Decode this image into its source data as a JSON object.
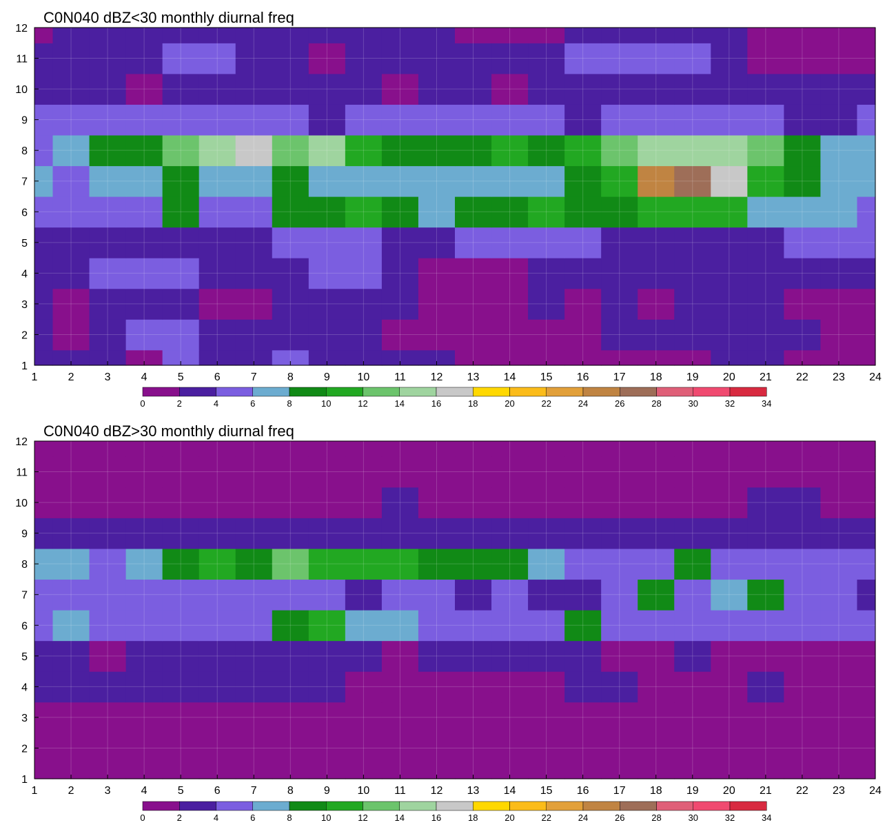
{
  "chart_data": [
    {
      "type": "heatmap",
      "title": "C0N040 dBZ<30 monthly diurnal freq",
      "xlabel": "",
      "ylabel": "",
      "x_ticks": [
        "1",
        "2",
        "3",
        "4",
        "5",
        "6",
        "7",
        "8",
        "9",
        "10",
        "11",
        "12",
        "13",
        "14",
        "15",
        "16",
        "17",
        "18",
        "19",
        "20",
        "21",
        "22",
        "23",
        "24"
      ],
      "y_ticks": [
        "1",
        "2",
        "3",
        "4",
        "5",
        "6",
        "7",
        "8",
        "9",
        "10",
        "11",
        "12"
      ],
      "xlim": [
        1,
        24
      ],
      "ylim": [
        1,
        12
      ],
      "grid": true,
      "legend": "bottom",
      "z": [
        [
          3,
          3,
          3,
          1,
          5,
          3,
          3,
          5,
          3,
          3,
          3,
          3,
          1,
          1,
          1,
          1,
          1,
          1,
          1,
          3,
          3,
          1,
          1,
          1
        ],
        [
          3,
          1,
          3,
          5,
          5,
          3,
          3,
          3,
          3,
          3,
          1,
          1,
          1,
          1,
          1,
          1,
          3,
          3,
          3,
          3,
          3,
          3,
          1,
          1
        ],
        [
          3,
          1,
          3,
          3,
          3,
          1,
          1,
          3,
          3,
          3,
          3,
          1,
          1,
          1,
          3,
          1,
          3,
          1,
          3,
          3,
          3,
          1,
          1,
          1
        ],
        [
          3,
          3,
          5,
          5,
          5,
          3,
          3,
          3,
          5,
          5,
          3,
          1,
          1,
          1,
          3,
          3,
          3,
          3,
          3,
          3,
          3,
          3,
          3,
          3
        ],
        [
          3,
          3,
          3,
          3,
          3,
          3,
          3,
          5,
          5,
          5,
          3,
          3,
          5,
          5,
          5,
          5,
          3,
          3,
          3,
          3,
          3,
          5,
          5,
          5
        ],
        [
          5,
          5,
          5,
          5,
          9,
          5,
          5,
          9,
          9,
          11,
          9,
          7,
          9,
          9,
          11,
          9,
          9,
          11,
          11,
          11,
          7,
          7,
          7,
          5
        ],
        [
          7,
          5,
          7,
          7,
          9,
          7,
          7,
          9,
          7,
          7,
          7,
          7,
          7,
          7,
          7,
          9,
          11,
          25,
          27,
          17,
          11,
          9,
          7,
          7
        ],
        [
          5,
          7,
          9,
          9,
          13,
          15,
          17,
          13,
          15,
          11,
          9,
          9,
          9,
          11,
          9,
          11,
          13,
          15,
          15,
          15,
          13,
          9,
          7,
          7
        ],
        [
          5,
          5,
          5,
          5,
          5,
          5,
          5,
          5,
          3,
          5,
          5,
          5,
          5,
          5,
          5,
          3,
          5,
          5,
          5,
          5,
          5,
          3,
          3,
          5
        ],
        [
          3,
          3,
          3,
          1,
          3,
          3,
          3,
          3,
          3,
          3,
          1,
          3,
          3,
          1,
          3,
          3,
          3,
          3,
          3,
          3,
          3,
          3,
          3,
          3
        ],
        [
          3,
          3,
          3,
          3,
          5,
          5,
          3,
          3,
          1,
          3,
          3,
          3,
          3,
          3,
          3,
          5,
          5,
          5,
          5,
          3,
          1,
          1,
          1,
          1
        ],
        [
          1,
          3,
          3,
          3,
          3,
          3,
          3,
          3,
          3,
          3,
          3,
          3,
          1,
          1,
          1,
          3,
          3,
          3,
          3,
          3,
          1,
          1,
          1,
          1
        ]
      ]
    },
    {
      "type": "heatmap",
      "title": "C0N040 dBZ>30 monthly diurnal freq",
      "xlabel": "",
      "ylabel": "",
      "x_ticks": [
        "1",
        "2",
        "3",
        "4",
        "5",
        "6",
        "7",
        "8",
        "9",
        "10",
        "11",
        "12",
        "13",
        "14",
        "15",
        "16",
        "17",
        "18",
        "19",
        "20",
        "21",
        "22",
        "23",
        "24"
      ],
      "y_ticks": [
        "1",
        "2",
        "3",
        "4",
        "5",
        "6",
        "7",
        "8",
        "9",
        "10",
        "11",
        "12"
      ],
      "xlim": [
        1,
        24
      ],
      "ylim": [
        1,
        12
      ],
      "grid": true,
      "legend": "bottom",
      "z": [
        [
          1,
          1,
          1,
          1,
          1,
          1,
          1,
          1,
          1,
          1,
          1,
          1,
          1,
          1,
          1,
          1,
          1,
          1,
          1,
          1,
          1,
          1,
          1,
          1
        ],
        [
          1,
          1,
          1,
          1,
          1,
          1,
          1,
          1,
          1,
          1,
          1,
          1,
          1,
          1,
          1,
          1,
          1,
          1,
          1,
          1,
          1,
          1,
          1,
          1
        ],
        [
          1,
          1,
          1,
          1,
          1,
          1,
          1,
          1,
          1,
          1,
          1,
          1,
          1,
          1,
          1,
          1,
          1,
          1,
          1,
          1,
          1,
          1,
          1,
          1
        ],
        [
          3,
          3,
          3,
          3,
          3,
          3,
          3,
          3,
          3,
          1,
          1,
          1,
          1,
          1,
          1,
          3,
          3,
          1,
          1,
          1,
          3,
          1,
          1,
          1
        ],
        [
          3,
          3,
          1,
          3,
          3,
          3,
          3,
          3,
          3,
          3,
          1,
          3,
          3,
          3,
          3,
          3,
          1,
          1,
          3,
          1,
          1,
          1,
          1,
          1
        ],
        [
          5,
          7,
          5,
          5,
          5,
          5,
          5,
          9,
          11,
          7,
          7,
          5,
          5,
          5,
          5,
          9,
          5,
          5,
          5,
          5,
          5,
          5,
          5,
          5
        ],
        [
          5,
          5,
          5,
          5,
          5,
          5,
          5,
          5,
          5,
          3,
          5,
          5,
          3,
          5,
          3,
          3,
          5,
          9,
          5,
          7,
          9,
          5,
          5,
          3
        ],
        [
          7,
          7,
          5,
          7,
          9,
          11,
          9,
          13,
          11,
          11,
          11,
          9,
          9,
          9,
          7,
          5,
          5,
          5,
          9,
          5,
          5,
          5,
          5,
          5
        ],
        [
          3,
          3,
          3,
          3,
          3,
          3,
          3,
          3,
          3,
          3,
          3,
          3,
          3,
          3,
          3,
          3,
          3,
          3,
          3,
          3,
          3,
          3,
          3,
          3
        ],
        [
          1,
          1,
          1,
          1,
          1,
          1,
          1,
          1,
          1,
          1,
          3,
          1,
          1,
          1,
          1,
          1,
          1,
          1,
          1,
          1,
          3,
          3,
          1,
          1
        ],
        [
          1,
          1,
          1,
          1,
          1,
          1,
          1,
          1,
          1,
          1,
          1,
          1,
          1,
          1,
          1,
          1,
          1,
          1,
          1,
          1,
          1,
          1,
          1,
          1
        ],
        [
          1,
          1,
          1,
          1,
          1,
          1,
          1,
          1,
          1,
          1,
          1,
          1,
          1,
          1,
          1,
          1,
          1,
          1,
          1,
          1,
          1,
          1,
          1,
          1
        ]
      ]
    }
  ],
  "colorbar": {
    "labels": [
      "0",
      "2",
      "4",
      "6",
      "8",
      "10",
      "12",
      "14",
      "16",
      "18",
      "20",
      "22",
      "24",
      "26",
      "28",
      "30",
      "32",
      "34"
    ],
    "colors": [
      "#88108c",
      "#4b1fa0",
      "#7b5ee0",
      "#6cacd0",
      "#118a16",
      "#22a822",
      "#6cc46c",
      "#9fd49f",
      "#c8c8c8",
      "#ffd800",
      "#fbbc1a",
      "#e2a03a",
      "#c08442",
      "#9e6e58",
      "#df5f78",
      "#f04a70",
      "#d82a40"
    ]
  }
}
